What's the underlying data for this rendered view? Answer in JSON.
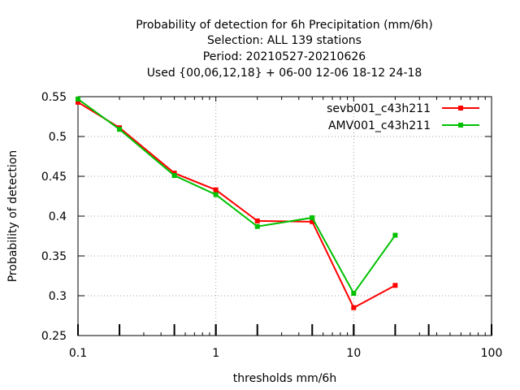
{
  "chart_data": {
    "type": "line",
    "title_lines": [
      "Probability of detection  for 6h Precipitation (mm/6h)",
      "Selection: ALL    139 stations",
      "Period: 20210527-20210626",
      "Used {00,06,12,18} + 06-00 12-06 18-12 24-18"
    ],
    "xlabel": "thresholds mm/6h",
    "ylabel": "Probability of detection",
    "x_scale": "log",
    "xlim": [
      0.1,
      100
    ],
    "ylim": [
      0.25,
      0.55
    ],
    "x_ticks": [
      0.1,
      1,
      10,
      100
    ],
    "x_tick_labels": [
      "0.1",
      "1",
      "10",
      "100"
    ],
    "y_ticks": [
      0.25,
      0.3,
      0.35,
      0.4,
      0.45,
      0.5,
      0.55
    ],
    "y_tick_labels": [
      "0.25",
      "0.3",
      "0.35",
      "0.4",
      "0.45",
      "0.5",
      "0.55"
    ],
    "threshold_tick_marks": [
      0.1,
      0.2,
      0.5,
      1,
      2,
      5,
      10,
      20,
      35
    ],
    "grid": true,
    "legend_position": "top-right",
    "series": [
      {
        "name": "sevb001_c43h211",
        "color": "#ff0000",
        "x": [
          0.1,
          0.2,
          0.5,
          1,
          2,
          5,
          10,
          20
        ],
        "y": [
          0.543,
          0.511,
          0.454,
          0.433,
          0.394,
          0.393,
          0.285,
          0.313
        ]
      },
      {
        "name": "AMV001_c43h211",
        "color": "#00c000",
        "x": [
          0.1,
          0.2,
          0.5,
          1,
          2,
          5,
          10,
          20
        ],
        "y": [
          0.547,
          0.509,
          0.451,
          0.427,
          0.387,
          0.398,
          0.303,
          0.376
        ]
      }
    ]
  }
}
